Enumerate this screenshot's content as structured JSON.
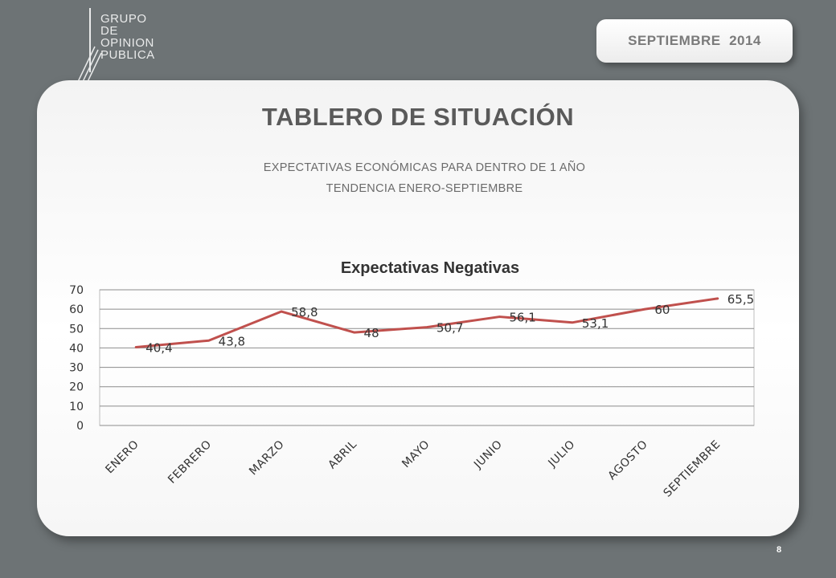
{
  "header": {
    "logo_lines": [
      "GRUPO",
      "DE",
      "OPINION",
      "PUBLICA"
    ],
    "date_badge": "SEPTIEMBRE  2014"
  },
  "main": {
    "title": "TABLERO DE SITUACIÓN",
    "subtitle_1": "EXPECTATIVAS ECONÓMICAS PARA DENTRO DE 1 AÑO",
    "subtitle_2": "TENDENCIA ENERO-SEPTIEMBRE"
  },
  "chart_data": {
    "type": "line",
    "title": "Expectativas Negativas",
    "categories": [
      "ENERO",
      "FEBRERO",
      "MARZO",
      "ABRIL",
      "MAYO",
      "JUNIO",
      "JULIO",
      "AGOSTO",
      "SEPTIEMBRE"
    ],
    "series": [
      {
        "values": [
          40.4,
          43.8,
          58.8,
          48,
          50.7,
          56.1,
          53.1,
          60,
          65.5
        ],
        "labels": [
          "40,4",
          "43,8",
          "58,8",
          "48",
          "50,7",
          "56,1",
          "53,1",
          "60",
          "65,5"
        ],
        "color": "#c0504d"
      }
    ],
    "ylim": [
      0,
      70
    ],
    "yticks": [
      0,
      10,
      20,
      30,
      40,
      50,
      60,
      70
    ],
    "grid": true,
    "legend": "none"
  },
  "footer": {
    "page_number": "8"
  }
}
